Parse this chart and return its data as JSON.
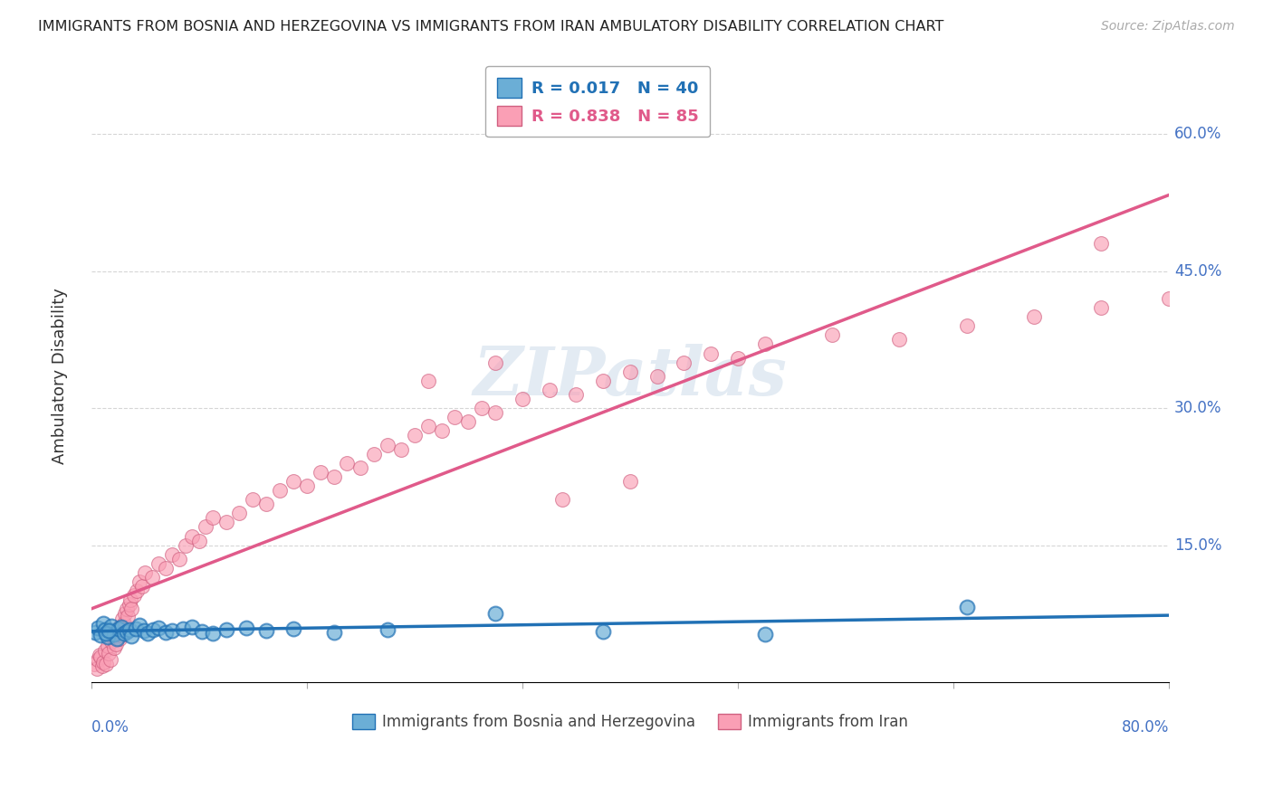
{
  "title": "IMMIGRANTS FROM BOSNIA AND HERZEGOVINA VS IMMIGRANTS FROM IRAN AMBULATORY DISABILITY CORRELATION CHART",
  "source": "Source: ZipAtlas.com",
  "ylabel": "Ambulatory Disability",
  "watermark": "ZIPatlas",
  "legend1_label": "Immigrants from Bosnia and Herzegovina",
  "legend2_label": "Immigrants from Iran",
  "R1": 0.017,
  "N1": 40,
  "R2": 0.838,
  "N2": 85,
  "color1": "#6baed6",
  "color2": "#fa9fb5",
  "line_color1": "#2171b5",
  "line_color2": "#e05a8a",
  "xlim": [
    0.0,
    80.0
  ],
  "ylim": [
    0.0,
    67.0
  ],
  "yticks": [
    15.0,
    30.0,
    45.0,
    60.0
  ],
  "ytick_labels": [
    "15.0%",
    "30.0%",
    "45.0%",
    "60.0%"
  ],
  "background_color": "#ffffff",
  "bosnia_x": [
    0.3,
    0.5,
    0.7,
    0.9,
    1.0,
    1.2,
    1.4,
    1.5,
    1.7,
    1.9,
    2.0,
    2.2,
    2.4,
    2.6,
    2.8,
    3.0,
    3.3,
    3.6,
    3.9,
    4.2,
    4.6,
    5.0,
    5.5,
    6.0,
    6.8,
    7.5,
    8.2,
    9.0,
    10.0,
    11.5,
    13.0,
    15.0,
    18.0,
    22.0,
    30.0,
    50.0,
    65.0,
    38.0,
    1.1,
    1.3
  ],
  "bosnia_y": [
    5.5,
    6.0,
    5.2,
    6.5,
    5.8,
    5.0,
    5.7,
    6.2,
    5.3,
    4.8,
    5.9,
    6.1,
    5.4,
    5.6,
    5.8,
    5.1,
    5.9,
    6.3,
    5.7,
    5.4,
    5.8,
    6.0,
    5.5,
    5.7,
    5.9,
    6.1,
    5.6,
    5.4,
    5.8,
    6.0,
    5.7,
    5.9,
    5.5,
    5.8,
    7.5,
    5.3,
    8.2,
    5.6,
    5.4,
    5.7
  ],
  "iran_x": [
    0.2,
    0.4,
    0.5,
    0.6,
    0.7,
    0.8,
    0.9,
    1.0,
    1.1,
    1.2,
    1.3,
    1.4,
    1.5,
    1.6,
    1.7,
    1.8,
    1.9,
    2.0,
    2.1,
    2.2,
    2.3,
    2.4,
    2.5,
    2.6,
    2.7,
    2.8,
    2.9,
    3.0,
    3.2,
    3.4,
    3.6,
    3.8,
    4.0,
    4.5,
    5.0,
    5.5,
    6.0,
    6.5,
    7.0,
    7.5,
    8.0,
    8.5,
    9.0,
    10.0,
    11.0,
    12.0,
    13.0,
    14.0,
    15.0,
    16.0,
    17.0,
    18.0,
    19.0,
    20.0,
    21.0,
    22.0,
    23.0,
    24.0,
    25.0,
    26.0,
    27.0,
    28.0,
    29.0,
    30.0,
    32.0,
    34.0,
    36.0,
    38.0,
    40.0,
    42.0,
    44.0,
    46.0,
    48.0,
    50.0,
    55.0,
    60.0,
    65.0,
    70.0,
    75.0,
    80.0,
    25.0,
    30.0,
    35.0,
    40.0,
    75.0
  ],
  "iran_y": [
    2.0,
    1.5,
    2.5,
    3.0,
    2.8,
    1.8,
    2.2,
    3.5,
    2.0,
    4.0,
    3.2,
    2.5,
    4.5,
    5.0,
    3.8,
    4.2,
    5.5,
    6.0,
    4.8,
    5.2,
    7.0,
    6.5,
    7.5,
    8.0,
    7.2,
    8.5,
    9.0,
    8.0,
    9.5,
    10.0,
    11.0,
    10.5,
    12.0,
    11.5,
    13.0,
    12.5,
    14.0,
    13.5,
    15.0,
    16.0,
    15.5,
    17.0,
    18.0,
    17.5,
    18.5,
    20.0,
    19.5,
    21.0,
    22.0,
    21.5,
    23.0,
    22.5,
    24.0,
    23.5,
    25.0,
    26.0,
    25.5,
    27.0,
    28.0,
    27.5,
    29.0,
    28.5,
    30.0,
    29.5,
    31.0,
    32.0,
    31.5,
    33.0,
    34.0,
    33.5,
    35.0,
    36.0,
    35.5,
    37.0,
    38.0,
    37.5,
    39.0,
    40.0,
    41.0,
    42.0,
    33.0,
    35.0,
    20.0,
    22.0,
    48.0
  ]
}
